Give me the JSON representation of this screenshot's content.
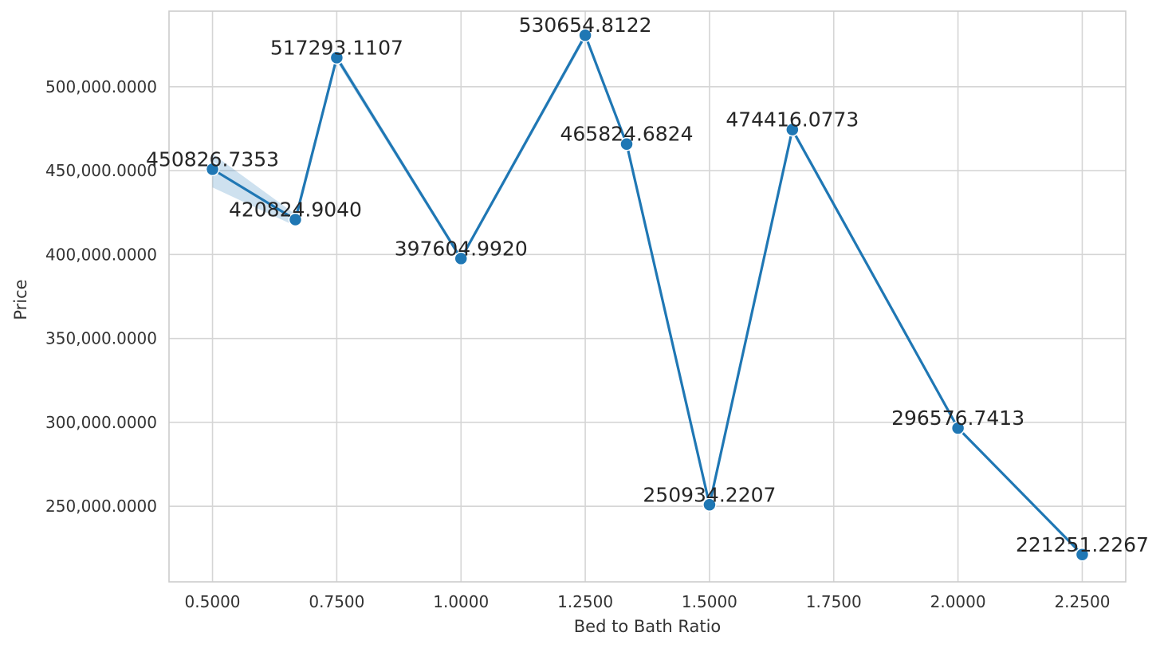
{
  "chart_data": {
    "type": "line",
    "title": "",
    "xlabel": "Bed to Bath Ratio",
    "ylabel": "Price",
    "xlim": [
      0.4125,
      2.3375
    ],
    "ylim": [
      205000,
      545000
    ],
    "xticks": [
      0.5,
      0.75,
      1.0,
      1.25,
      1.5,
      1.75,
      2.0,
      2.25
    ],
    "xtick_labels": [
      "0.5000",
      "0.7500",
      "1.0000",
      "1.2500",
      "1.5000",
      "1.7500",
      "2.0000",
      "2.2500"
    ],
    "yticks": [
      250000,
      300000,
      350000,
      400000,
      450000,
      500000
    ],
    "ytick_labels": [
      "250,000.0000",
      "300,000.0000",
      "350,000.0000",
      "400,000.0000",
      "450,000.0000",
      "500,000.0000"
    ],
    "grid": true,
    "legend": "none",
    "line_color": "#1f77b4",
    "band_color": "#1f77b4",
    "series": [
      {
        "points": [
          {
            "x": 0.5,
            "y": 450826.7353,
            "label": "450826.7353",
            "ci": [
              440000,
              460000
            ]
          },
          {
            "x": 0.6667,
            "y": 420824.904,
            "label": "420824.9040",
            "ci": [
              417000,
              424000
            ]
          },
          {
            "x": 0.75,
            "y": 517293.1107,
            "label": "517293.1107",
            "ci": [
              515000,
              519500
            ]
          },
          {
            "x": 1.0,
            "y": 397604.992,
            "label": "397604.9920",
            "ci": [
              396000,
              399000
            ]
          },
          {
            "x": 1.25,
            "y": 530654.8122,
            "label": "530654.8122",
            "ci": [
              528500,
              532500
            ]
          },
          {
            "x": 1.3333,
            "y": 465824.6824,
            "label": "465824.6824",
            "ci": [
              464500,
              467000
            ]
          },
          {
            "x": 1.5,
            "y": 250934.2207,
            "label": "250934.2207",
            "ci": [
              250000,
              252000
            ]
          },
          {
            "x": 1.6667,
            "y": 474416.0773,
            "label": "474416.0773",
            "ci": [
              472500,
              476000
            ]
          },
          {
            "x": 2.0,
            "y": 296576.7413,
            "label": "296576.7413",
            "ci": [
              295500,
              297500
            ]
          },
          {
            "x": 2.25,
            "y": 221251.2267,
            "label": "221251.2267",
            "ci": [
              220500,
              222000
            ]
          }
        ]
      }
    ]
  }
}
